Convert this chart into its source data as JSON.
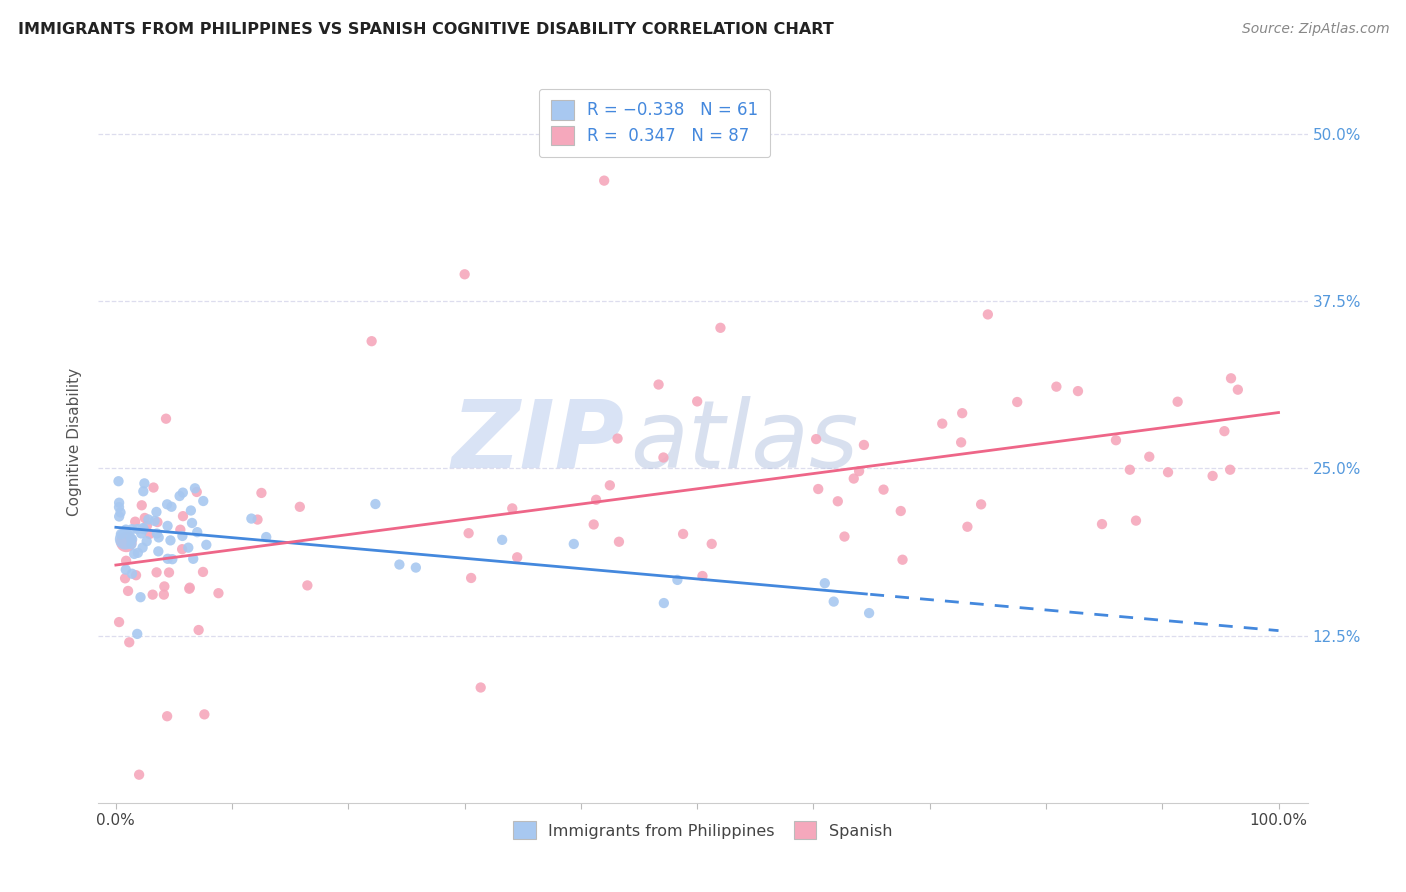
{
  "title": "IMMIGRANTS FROM PHILIPPINES VS SPANISH COGNITIVE DISABILITY CORRELATION CHART",
  "source": "Source: ZipAtlas.com",
  "ylabel": "Cognitive Disability",
  "ytick_values": [
    0.125,
    0.25,
    0.375,
    0.5
  ],
  "ytick_labels": [
    "12.5%",
    "25.0%",
    "37.5%",
    "50.0%"
  ],
  "xlim": [
    0.0,
    1.0
  ],
  "ylim": [
    0.0,
    0.54
  ],
  "blue_color": "#A8C8F0",
  "pink_color": "#F5A8BC",
  "blue_line_color": "#4488DD",
  "pink_line_color": "#EE6688",
  "watermark_zip": "ZIP",
  "watermark_atlas": "atlas",
  "grid_color": "#DDDDEE",
  "title_color": "#222222",
  "source_color": "#888888",
  "tick_label_color": "#5599DD",
  "bottom_label_color": "#444444"
}
